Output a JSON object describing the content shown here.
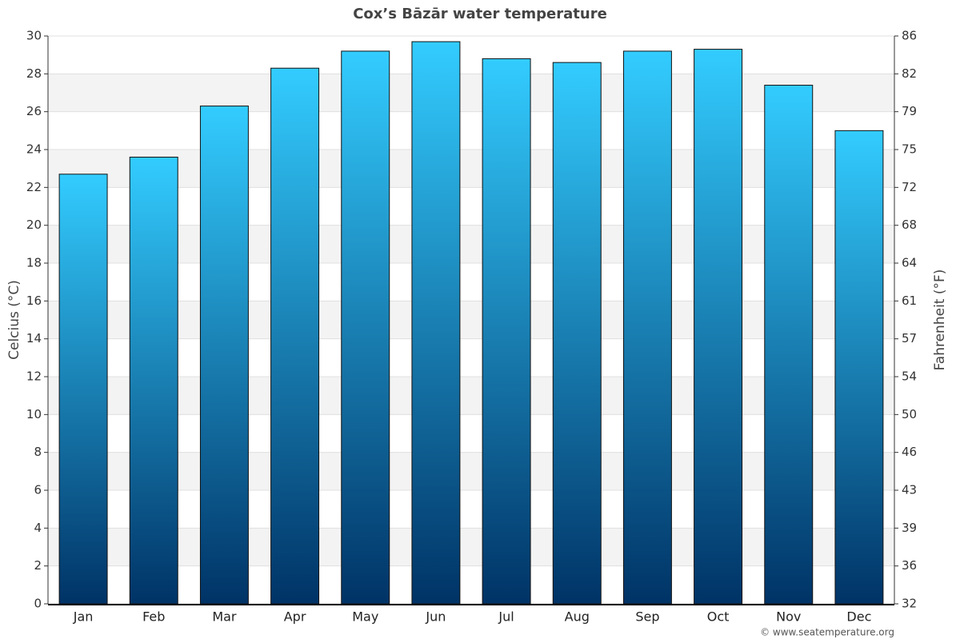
{
  "chart_data": {
    "type": "bar",
    "title": "Cox’s Bāzār water temperature",
    "y_label": "Celcius (°C)",
    "y2_label": "Fahrenheit (°F)",
    "categories": [
      "Jan",
      "Feb",
      "Mar",
      "Apr",
      "May",
      "Jun",
      "Jul",
      "Aug",
      "Sep",
      "Oct",
      "Nov",
      "Dec"
    ],
    "values": [
      22.7,
      23.6,
      26.3,
      28.3,
      29.2,
      29.7,
      28.8,
      28.6,
      29.2,
      29.3,
      27.4,
      25.0
    ],
    "color": [
      "#33ccff",
      "#003366"
    ],
    "ylim": [
      0,
      30
    ],
    "yticks": [
      0,
      2,
      4,
      6,
      8,
      10,
      12,
      14,
      16,
      18,
      20,
      22,
      24,
      26,
      28,
      30
    ],
    "y2lim": [
      32,
      86
    ],
    "y2ticks": [
      32,
      {
        "value": 35.6,
        "label": "36"
      },
      {
        "value": 39.2,
        "label": "39"
      },
      {
        "value": 42.8,
        "label": "43"
      },
      {
        "value": 46.4,
        "label": "46"
      },
      50,
      {
        "value": 53.6,
        "label": "54"
      },
      {
        "value": 57.2,
        "label": "57"
      },
      {
        "value": 60.8,
        "label": "61"
      },
      {
        "value": 64.4,
        "label": "64"
      },
      68,
      {
        "value": 71.6,
        "label": "72"
      },
      {
        "value": 75.2,
        "label": "75"
      },
      {
        "value": 78.8,
        "label": "79"
      },
      {
        "value": 82.4,
        "label": "82"
      },
      86
    ],
    "grid": true,
    "source": "© www.seatemperature.org"
  }
}
